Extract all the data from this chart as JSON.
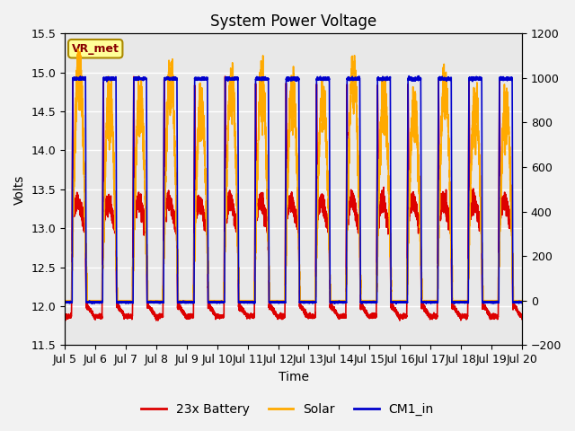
{
  "title": "System Power Voltage",
  "xlabel": "Time",
  "ylabel": "Volts",
  "ylim_left": [
    11.5,
    15.5
  ],
  "ylim_right": [
    -200,
    1200
  ],
  "yticks_left": [
    11.5,
    12.0,
    12.5,
    13.0,
    13.5,
    14.0,
    14.5,
    15.0,
    15.5
  ],
  "yticks_right": [
    -200,
    0,
    200,
    400,
    600,
    800,
    1000,
    1200
  ],
  "xtick_labels": [
    "Jul 5",
    "Jul 6",
    "Jul 7",
    "Jul 8",
    "Jul 9",
    "Jul 10",
    "Jul 11",
    "Jul 12",
    "Jul 13",
    "Jul 14",
    "Jul 15",
    "Jul 16",
    "Jul 17",
    "Jul 18",
    "Jul 19",
    "Jul 20"
  ],
  "color_battery": "#dd0000",
  "color_solar": "#ffaa00",
  "color_cm1": "#0000cc",
  "legend_labels": [
    "23x Battery",
    "Solar",
    "CM1_in"
  ],
  "annotation_box_text": "VR_met",
  "annotation_box_facecolor": "#ffff99",
  "annotation_box_edgecolor": "#aa8800",
  "annotation_text_color": "#880000",
  "plot_bg_color": "#e8e8e8",
  "figure_bg_color": "#f2f2f2",
  "grid_color": "#ffffff",
  "grid_linewidth": 1.0,
  "line_linewidth": 1.2,
  "title_fontsize": 12,
  "axis_label_fontsize": 10,
  "tick_fontsize": 9,
  "legend_fontsize": 10
}
